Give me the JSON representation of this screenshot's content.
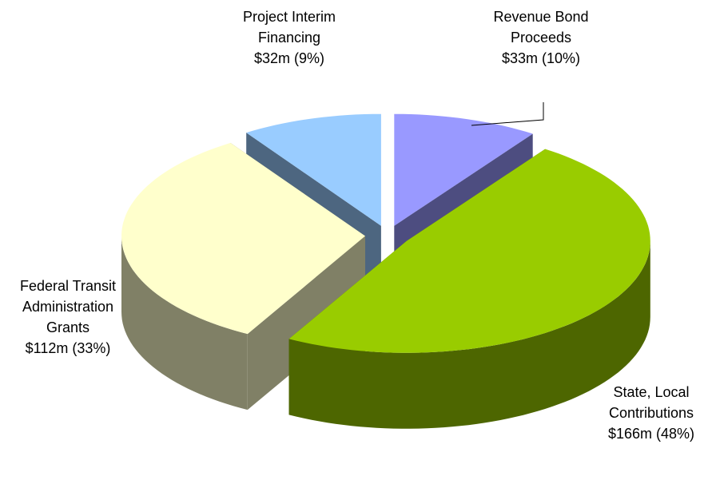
{
  "chart_data": {
    "type": "pie",
    "categories": [
      "Revenue Bond Proceeds",
      "State, Local Contributions",
      "Federal Transit Administration Grants",
      "Project Interim Financing"
    ],
    "values": [
      33,
      166,
      112,
      32
    ],
    "value_labels": [
      "$33m (10%)",
      "$166m (48%)",
      "$112m (33%)",
      "$32m (9%)"
    ],
    "colors": [
      "#9999ff",
      "#99cc00",
      "#ffffcc",
      "#99ccff"
    ],
    "side_colors": [
      "#4d4d80",
      "#4d6600",
      "#808066",
      "#4d6680"
    ]
  }
}
